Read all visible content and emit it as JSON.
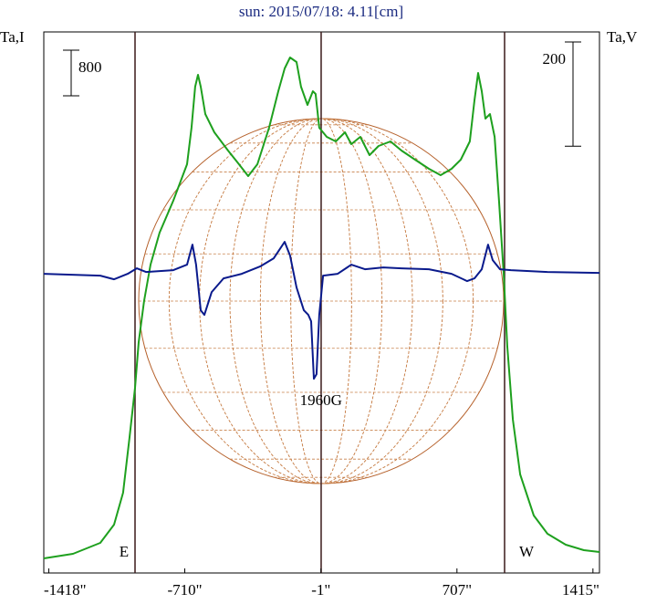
{
  "chart_data": {
    "type": "line",
    "title": "sun: 2015/07/18: 4.11[cm]",
    "y_label": "Ta,I",
    "y2_label": "Ta,V",
    "xlim": [
      -1444,
      1449
    ],
    "xticks": [
      {
        "value": -1418,
        "label": "-1418\""
      },
      {
        "value": -710,
        "label": "-710\""
      },
      {
        "value": -1,
        "label": "-1\""
      },
      {
        "value": 707,
        "label": "707\""
      },
      {
        "value": 1415,
        "label": "1415\""
      }
    ],
    "ylim": [
      0,
      9488
    ],
    "y2lim": [
      -574,
      464
    ],
    "scale_bars": [
      {
        "value": 800,
        "axis": "y"
      },
      {
        "value": 200,
        "axis": "y2"
      }
    ],
    "vlines": [
      {
        "x": -969,
        "label": "E"
      },
      {
        "x": 0
      },
      {
        "x": 955,
        "label": "W"
      }
    ],
    "annotations": [
      {
        "text": "1960G",
        "x": -1
      }
    ],
    "series": [
      {
        "name": "I",
        "color": "#1ea01e",
        "axis": "y",
        "x": [
          -1444,
          -1292,
          -1150,
          -1078,
          -1031,
          -998,
          -969,
          -950,
          -922,
          -888,
          -841,
          -770,
          -698,
          -675,
          -656,
          -641,
          -627,
          -603,
          -556,
          -485,
          -428,
          -380,
          -332,
          -271,
          -223,
          -190,
          -162,
          -128,
          -105,
          -71,
          -43,
          -29,
          -10,
          29,
          76,
          124,
          157,
          204,
          252,
          299,
          361,
          418,
          489,
          561,
          622,
          679,
          727,
          774,
          798,
          817,
          836,
          855,
          879,
          903,
          926,
          950,
          969,
          998,
          1036,
          1107,
          1178,
          1273,
          1368,
          1449
        ],
        "values": [
          256,
          336,
          528,
          848,
          1408,
          2368,
          3248,
          4048,
          4768,
          5408,
          5968,
          6528,
          7168,
          7808,
          8528,
          8736,
          8528,
          8048,
          7728,
          7408,
          7168,
          6960,
          7168,
          7808,
          8448,
          8848,
          9040,
          8960,
          8528,
          8208,
          8448,
          8400,
          7808,
          7648,
          7568,
          7728,
          7520,
          7648,
          7328,
          7488,
          7568,
          7408,
          7248,
          7088,
          6976,
          7088,
          7248,
          7568,
          8288,
          8768,
          8448,
          7968,
          8048,
          7648,
          6528,
          5248,
          3968,
          2688,
          1728,
          1008,
          688,
          496,
          400,
          368
        ]
      },
      {
        "name": "V",
        "color": "#0a1a8c",
        "axis": "y2",
        "x": [
          -1444,
          -1150,
          -1078,
          -1007,
          -960,
          -912,
          -770,
          -698,
          -670,
          -651,
          -627,
          -608,
          -570,
          -508,
          -413,
          -318,
          -247,
          -190,
          -162,
          -128,
          -90,
          -67,
          -52,
          -38,
          -24,
          -10,
          10,
          86,
          157,
          228,
          323,
          418,
          561,
          679,
          760,
          798,
          836,
          869,
          893,
          931,
          988,
          1178,
          1449
        ],
        "values": [
          0,
          -3.5,
          -10.5,
          0,
          10.5,
          3.5,
          7,
          17.5,
          56,
          17.5,
          -70,
          -78.8,
          -35,
          -8.8,
          0,
          14,
          29.8,
          61.3,
          35,
          -26.3,
          -70,
          -78.8,
          -91,
          -201.3,
          -192.5,
          -78.8,
          -3.5,
          0,
          17.5,
          8.8,
          12.3,
          10.5,
          8.8,
          0,
          -14,
          -8.8,
          8.8,
          56,
          26.3,
          8.8,
          7,
          3.5,
          1.8
        ]
      }
    ]
  }
}
